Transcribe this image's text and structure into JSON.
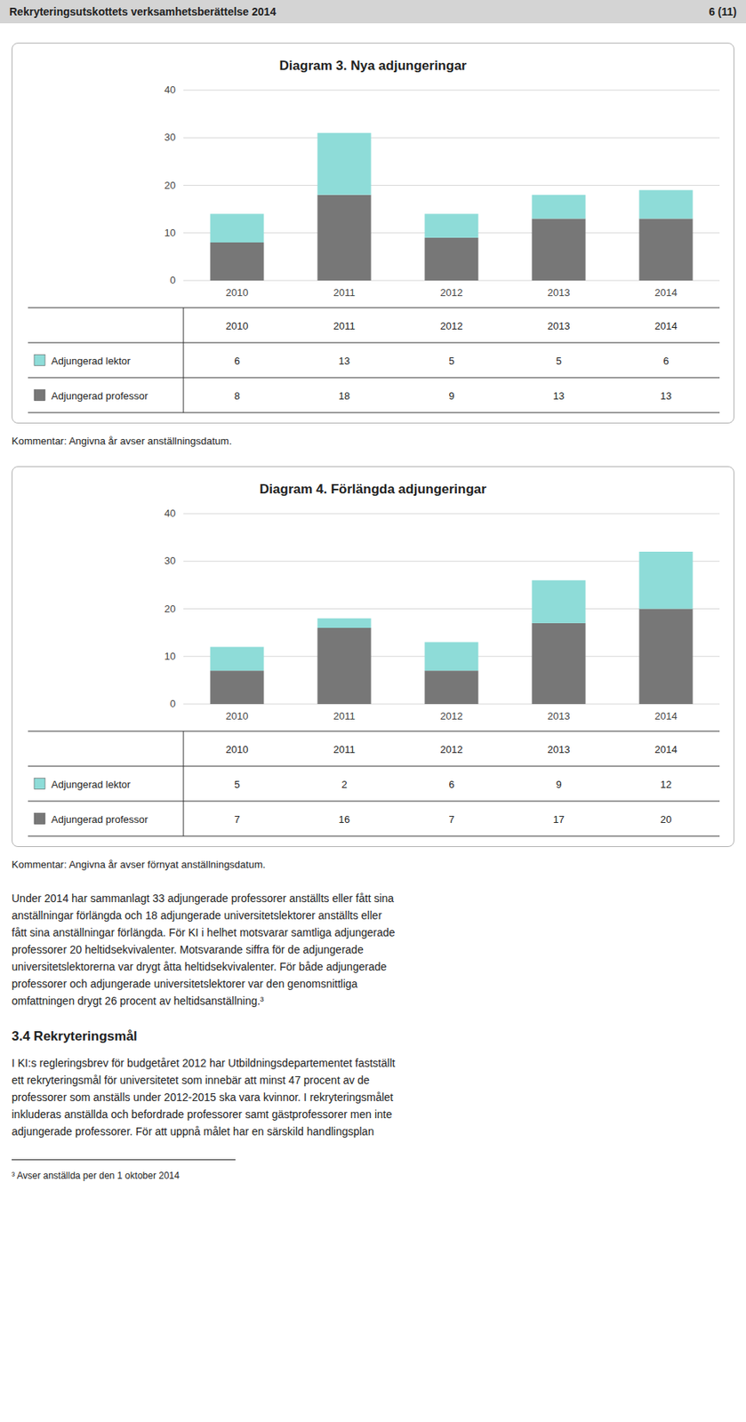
{
  "header": {
    "left": "Rekryteringsutskottets verksamhetsberättelse 2014",
    "right": "6 (11)"
  },
  "chart_data": [
    {
      "type": "bar",
      "title": "Diagram 3. Nya adjungeringar",
      "categories": [
        "2010",
        "2011",
        "2012",
        "2013",
        "2014"
      ],
      "series": [
        {
          "name": "Adjungerad professor",
          "color": "#777777",
          "values": [
            8,
            18,
            9,
            13,
            13
          ]
        },
        {
          "name": "Adjungerad lektor",
          "color": "#8edcd8",
          "values": [
            6,
            13,
            5,
            5,
            6
          ]
        }
      ],
      "stacked": true,
      "ylim": [
        0,
        40
      ],
      "yticks": [
        0,
        10,
        20,
        30,
        40
      ],
      "grid": true,
      "legend": "bottom",
      "annotations": [
        "Kommentar: Angivna år avser anställningsdatum."
      ]
    },
    {
      "type": "bar",
      "title": "Diagram 4. Förlängda adjungeringar",
      "categories": [
        "2010",
        "2011",
        "2012",
        "2013",
        "2014"
      ],
      "series": [
        {
          "name": "Adjungerad professor",
          "color": "#777777",
          "values": [
            7,
            16,
            7,
            17,
            20
          ]
        },
        {
          "name": "Adjungerad lektor",
          "color": "#8edcd8",
          "values": [
            5,
            2,
            6,
            9,
            12
          ]
        }
      ],
      "stacked": true,
      "ylim": [
        0,
        40
      ],
      "yticks": [
        0,
        10,
        20,
        30,
        40
      ],
      "grid": true,
      "legend": "bottom",
      "annotations": [
        "Kommentar: Angivna år avser förnyat anställningsdatum."
      ]
    }
  ],
  "body_text_lines": [
    "Under 2014 har sammanlagt 33 adjungerade professorer anställts eller fått sina",
    "anställningar förlängda och 18 adjungerade universitetslektorer anställts eller",
    "fått sina anställningar förlängda. För KI i helhet motsvarar samtliga adjungerade",
    "professorer 20 heltidsekvivalenter. Motsvarande siffra för de adjungerade",
    "universitetslektorerna var drygt åtta heltidsekvivalenter. För både adjungerade",
    "professorer och adjungerade universitetslektorer var den genomsnittliga",
    "omfattningen drygt 26 procent av heltidsanställning.³"
  ],
  "section_title": "3.4 Rekryteringsmål",
  "section_text_lines": [
    "I KI:s regleringsbrev för budgetåret 2012 har Utbildningsdepartementet fastställt",
    "ett rekryteringsmål för universitetet som innebär att minst 47 procent av de",
    "professorer som anställs under 2012-2015 ska vara kvinnor. I rekryteringsmålet",
    "inkluderas anställda och befordrade professorer samt gästprofessorer men inte",
    "adjungerade professorer.  För att uppnå målet har en särskild handlingsplan"
  ],
  "footnote": "³ Avser anställda per den 1 oktober 2014"
}
